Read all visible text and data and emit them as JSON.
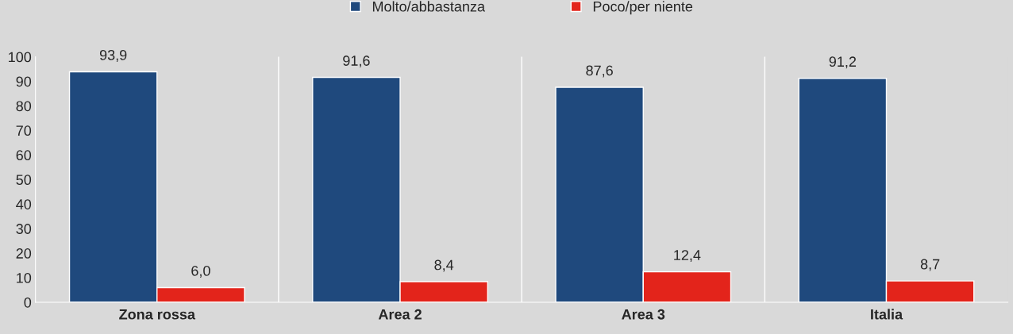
{
  "chart_data": {
    "type": "bar",
    "categories": [
      "Zona rossa",
      "Area 2",
      "Area 3",
      "Italia"
    ],
    "series": [
      {
        "name": "Molto/abbastanza",
        "color": "#1f497d",
        "values": [
          93.9,
          91.6,
          87.6,
          91.2
        ],
        "value_labels": [
          "93,9",
          "91,6",
          "87,6",
          "91,2"
        ]
      },
      {
        "name": "Poco/per niente",
        "color": "#e3241b",
        "values": [
          6.0,
          8.4,
          12.4,
          8.7
        ],
        "value_labels": [
          "6,0",
          "8,4",
          "12,4",
          "8,7"
        ]
      }
    ],
    "ylim": [
      0,
      100
    ],
    "yticks": [
      0,
      10,
      20,
      30,
      40,
      50,
      60,
      70,
      80,
      90,
      100
    ],
    "grid": "x",
    "legend": "top"
  }
}
